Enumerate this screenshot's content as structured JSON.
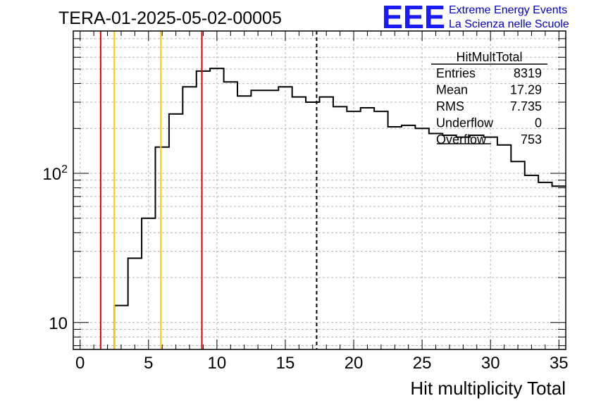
{
  "chart_data": {
    "type": "histogram",
    "title": "TERA-01-2025-05-02-00005",
    "xlabel": "Hit multiplicity Total",
    "ylabel": "",
    "xlim": [
      -0.5,
      35.5
    ],
    "ylim": [
      6.6,
      900
    ],
    "yscale": "log",
    "grid": true,
    "x_ticks": [
      0,
      5,
      10,
      15,
      20,
      25,
      30,
      35
    ],
    "x_tick_labels": [
      "0",
      "5",
      "10",
      "15",
      "20",
      "25",
      "30",
      "35"
    ],
    "y_ticks": [
      10,
      100
    ],
    "y_tick_labels": [
      "10",
      "10^2"
    ],
    "bin_width": 1,
    "bins": [
      {
        "low": 2.5,
        "high": 3.5,
        "value": 13
      },
      {
        "low": 3.5,
        "high": 4.5,
        "value": 27
      },
      {
        "low": 4.5,
        "high": 5.5,
        "value": 50
      },
      {
        "low": 5.5,
        "high": 6.5,
        "value": 150
      },
      {
        "low": 6.5,
        "high": 7.5,
        "value": 250
      },
      {
        "low": 7.5,
        "high": 8.5,
        "value": 380
      },
      {
        "low": 8.5,
        "high": 9.5,
        "value": 485
      },
      {
        "low": 9.5,
        "high": 10.5,
        "value": 505
      },
      {
        "low": 10.5,
        "high": 11.5,
        "value": 410
      },
      {
        "low": 11.5,
        "high": 12.5,
        "value": 330
      },
      {
        "low": 12.5,
        "high": 13.5,
        "value": 360
      },
      {
        "low": 13.5,
        "high": 14.5,
        "value": 360
      },
      {
        "low": 14.5,
        "high": 15.5,
        "value": 380
      },
      {
        "low": 15.5,
        "high": 16.5,
        "value": 325
      },
      {
        "low": 16.5,
        "high": 17.5,
        "value": 300
      },
      {
        "low": 17.5,
        "high": 18.5,
        "value": 325
      },
      {
        "low": 18.5,
        "high": 19.5,
        "value": 280
      },
      {
        "low": 19.5,
        "high": 20.5,
        "value": 260
      },
      {
        "low": 20.5,
        "high": 21.5,
        "value": 275
      },
      {
        "low": 21.5,
        "high": 22.5,
        "value": 260
      },
      {
        "low": 22.5,
        "high": 23.5,
        "value": 205
      },
      {
        "low": 23.5,
        "high": 24.5,
        "value": 210
      },
      {
        "low": 24.5,
        "high": 25.5,
        "value": 200
      },
      {
        "low": 25.5,
        "high": 26.5,
        "value": 185
      },
      {
        "low": 26.5,
        "high": 27.5,
        "value": 180
      },
      {
        "low": 27.5,
        "high": 28.5,
        "value": 175
      },
      {
        "low": 28.5,
        "high": 29.5,
        "value": 180
      },
      {
        "low": 29.5,
        "high": 30.5,
        "value": 175
      },
      {
        "low": 30.5,
        "high": 31.5,
        "value": 155
      },
      {
        "low": 31.5,
        "high": 32.5,
        "value": 120
      },
      {
        "low": 32.5,
        "high": 33.5,
        "value": 97
      },
      {
        "low": 33.5,
        "high": 34.5,
        "value": 87
      },
      {
        "low": 34.5,
        "high": 35.5,
        "value": 82
      }
    ],
    "vertical_lines": [
      {
        "x": 1.5,
        "color": "#e00000",
        "style": "solid"
      },
      {
        "x": 2.5,
        "color": "#ffcc00",
        "style": "solid"
      },
      {
        "x": 5.9,
        "color": "#ffcc00",
        "style": "solid"
      },
      {
        "x": 8.9,
        "color": "#e00000",
        "style": "solid"
      },
      {
        "x": 17.29,
        "color": "#000000",
        "style": "dashed"
      }
    ],
    "stats_box": {
      "title": "HitMultTotal",
      "rows": [
        {
          "label": "Entries",
          "value": "8319"
        },
        {
          "label": "Mean",
          "value": "17.29"
        },
        {
          "label": "RMS",
          "value": "7.735"
        },
        {
          "label": "Underflow",
          "value": "0"
        },
        {
          "label": "Overflow",
          "value": "753"
        }
      ]
    },
    "logo": {
      "mark": "EEE",
      "line1": "Extreme Energy Events",
      "line2": "La Scienza nelle Scuole"
    },
    "colors": {
      "histogram": "#000000",
      "grid": "#b4b4b4",
      "logo": "#1a1aff"
    }
  }
}
